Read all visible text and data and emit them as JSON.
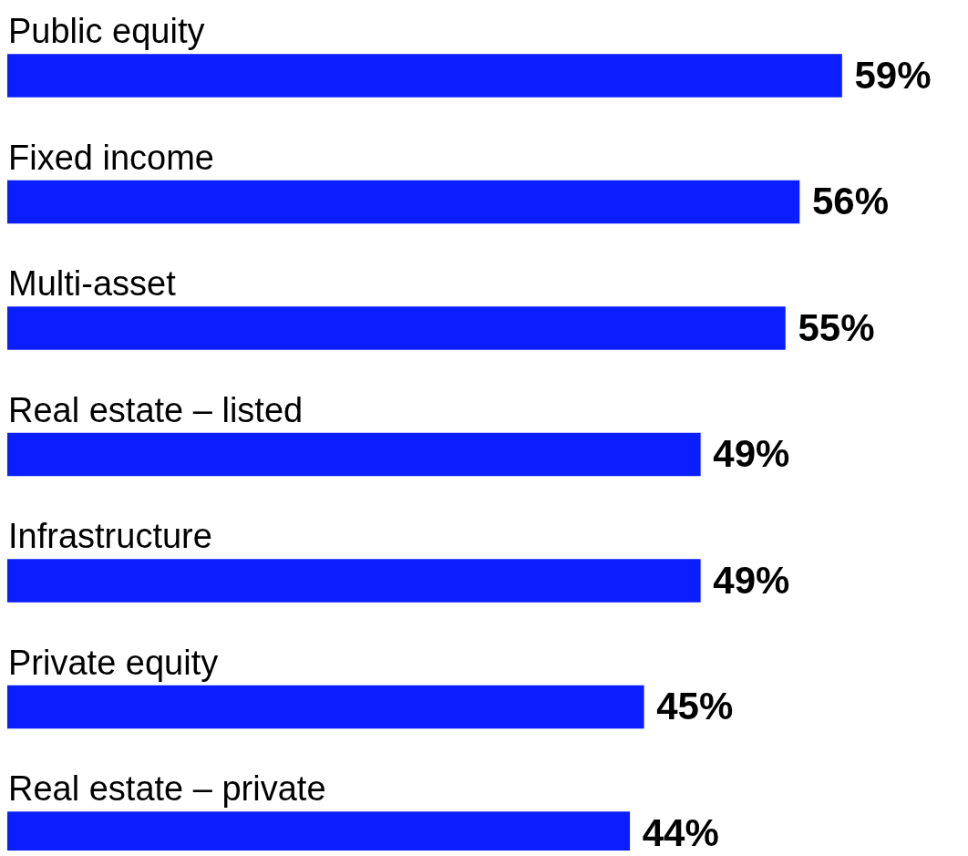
{
  "chart_data": {
    "type": "bar",
    "orientation": "horizontal",
    "categories": [
      "Public equity",
      "Fixed income",
      "Multi-asset",
      "Real estate – listed",
      "Infrastructure",
      "Private equity",
      "Real estate – private"
    ],
    "values": [
      59,
      56,
      55,
      49,
      49,
      45,
      44
    ],
    "value_labels": [
      "59%",
      "56%",
      "55%",
      "49%",
      "49%",
      "45%",
      "44%"
    ],
    "color": "#0a1eff"
  }
}
